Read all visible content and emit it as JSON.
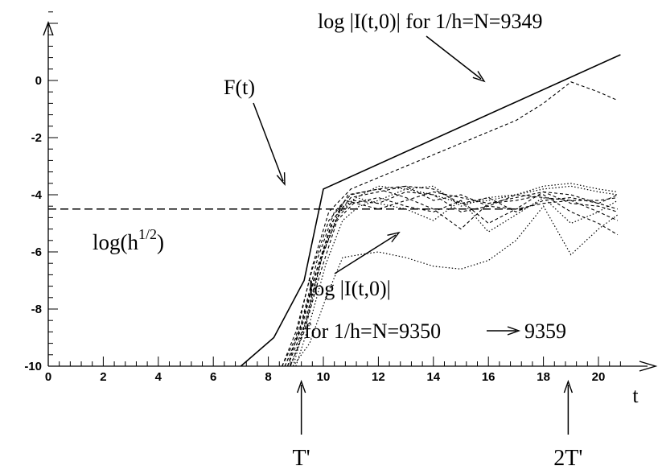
{
  "chart_data": {
    "type": "line",
    "title": "",
    "xlabel": "t",
    "ylabel": "",
    "xlim": [
      0,
      20.7
    ],
    "ylim": [
      -10,
      0
    ],
    "grid": false,
    "x_ticks": [
      "0",
      "2",
      "4",
      "6",
      "8",
      "10",
      "12",
      "14",
      "16",
      "18",
      "20"
    ],
    "y_ticks": [
      "0",
      "-2",
      "-4",
      "-6",
      "-8",
      "-10"
    ],
    "reference_line": {
      "value": -4.5,
      "label": "log(h",
      "label_sup": "1/2",
      "label_close": ")"
    },
    "x_markers": [
      {
        "x": 9.2,
        "label": "T'"
      },
      {
        "x": 18.9,
        "label": "2T'"
      }
    ],
    "annotations": {
      "F": {
        "text": "F(t)"
      },
      "top": {
        "text": "log |I(t,0)| for 1/h=N=9349"
      },
      "bottom_line1": {
        "text": "log |I(t,0)|"
      },
      "bottom_line2": {
        "text": "for 1/h=N=9350",
        "arrow_glyph": "→",
        "end_text": "9359"
      }
    },
    "series": [
      {
        "name": "F(t)",
        "style": "solid",
        "x": [
          7.0,
          8.2,
          9.3,
          10.0,
          20.8
        ],
        "y": [
          -10.0,
          -9.0,
          -7.0,
          -3.8,
          0.9
        ]
      },
      {
        "name": "N=9349",
        "style": "dashed",
        "x": [
          8.5,
          9.0,
          9.6,
          10.2,
          11.0,
          12,
          13,
          14,
          15,
          16,
          17,
          18,
          19.0,
          20.0,
          20.7
        ],
        "y": [
          -10.0,
          -9.0,
          -6.5,
          -4.6,
          -3.8,
          -3.4,
          -3.0,
          -2.6,
          -2.2,
          -1.8,
          -1.4,
          -0.8,
          -0.05,
          -0.4,
          -0.7
        ]
      },
      {
        "style": "dashed",
        "x": [
          8.5,
          9.0,
          9.6,
          10.2,
          10.8,
          12,
          13,
          14,
          15,
          16,
          17,
          18,
          19,
          20,
          20.7
        ],
        "y": [
          -10.0,
          -8.8,
          -6.6,
          -4.9,
          -4.2,
          -4.5,
          -4.2,
          -3.9,
          -4.1,
          -4.3,
          -4.1,
          -3.9,
          -4.0,
          -4.3,
          -4.0
        ]
      },
      {
        "style": "dashed",
        "x": [
          8.6,
          9.1,
          9.7,
          10.3,
          10.9,
          12,
          13,
          14,
          15,
          16,
          17,
          18,
          19,
          20,
          20.7
        ],
        "y": [
          -10.0,
          -8.9,
          -6.8,
          -5.0,
          -4.0,
          -3.8,
          -4.1,
          -4.5,
          -5.2,
          -4.3,
          -4.2,
          -4.0,
          -4.6,
          -5.0,
          -5.4
        ]
      },
      {
        "style": "dashed",
        "x": [
          8.6,
          9.2,
          9.8,
          10.4,
          11.0,
          12,
          13,
          14,
          15,
          16,
          17,
          18,
          19,
          20,
          20.7
        ],
        "y": [
          -10.0,
          -8.7,
          -6.5,
          -4.8,
          -4.1,
          -3.9,
          -3.7,
          -3.8,
          -4.3,
          -4.1,
          -4.6,
          -4.2,
          -4.1,
          -4.3,
          -4.5
        ]
      },
      {
        "style": "dashed",
        "x": [
          8.7,
          9.2,
          9.8,
          10.4,
          11.0,
          12,
          13,
          14,
          15,
          16,
          17,
          18,
          19,
          20,
          20.7
        ],
        "y": [
          -10.0,
          -8.5,
          -6.2,
          -4.6,
          -4.0,
          -3.8,
          -3.7,
          -4.2,
          -4.0,
          -4.4,
          -4.0,
          -4.1,
          -4.2,
          -4.2,
          -4.1
        ]
      },
      {
        "style": "dashed",
        "x": [
          8.7,
          9.3,
          9.9,
          10.5,
          11.1,
          12,
          13,
          14,
          15,
          16,
          17,
          18,
          19,
          20,
          20.7
        ],
        "y": [
          -10.0,
          -8.6,
          -6.3,
          -4.8,
          -4.2,
          -4.3,
          -3.9,
          -4.0,
          -4.6,
          -4.4,
          -4.5,
          -3.9,
          -4.3,
          -4.4,
          -4.6
        ]
      },
      {
        "style": "dashed",
        "x": [
          8.8,
          9.3,
          9.9,
          10.5,
          11.1,
          12,
          13,
          14,
          15,
          16,
          17,
          18,
          19,
          20,
          20.7
        ],
        "y": [
          -10.0,
          -8.8,
          -6.7,
          -4.9,
          -4.3,
          -4.1,
          -4.4,
          -4.6,
          -4.2,
          -5.0,
          -4.5,
          -4.3,
          -4.2,
          -4.6,
          -4.9
        ]
      },
      {
        "style": "dotted",
        "x": [
          8.8,
          9.4,
          10.0,
          10.6,
          11.2,
          12,
          13,
          14,
          15,
          16,
          17,
          18,
          19,
          20,
          20.7
        ],
        "y": [
          -10.0,
          -8.4,
          -6.0,
          -4.6,
          -4.1,
          -3.7,
          -3.8,
          -4.0,
          -4.3,
          -4.2,
          -4.0,
          -3.8,
          -3.7,
          -3.9,
          -4.0
        ]
      },
      {
        "style": "dotted",
        "x": [
          8.9,
          9.4,
          10.0,
          10.6,
          11.2,
          12,
          13,
          14,
          15,
          16,
          17,
          18,
          19,
          20,
          20.7
        ],
        "y": [
          -10.0,
          -8.3,
          -6.0,
          -4.5,
          -4.1,
          -4.3,
          -4.5,
          -4.9,
          -4.2,
          -5.3,
          -4.7,
          -4.1,
          -5.0,
          -4.6,
          -4.2
        ]
      },
      {
        "style": "dotted",
        "x": [
          8.9,
          9.5,
          10.1,
          10.7,
          11.3,
          12,
          13,
          14,
          15,
          16,
          17,
          18,
          19,
          20,
          20.7
        ],
        "y": [
          -10.0,
          -9.2,
          -7.6,
          -6.2,
          -6.1,
          -6.0,
          -6.2,
          -6.5,
          -6.6,
          -6.3,
          -5.6,
          -4.4,
          -6.1,
          -5.2,
          -4.7
        ]
      },
      {
        "style": "dotted",
        "x": [
          9.0,
          9.5,
          10.1,
          10.7,
          11.3,
          12,
          13,
          14,
          15,
          16,
          17,
          18,
          19,
          20,
          20.7
        ],
        "y": [
          -10.0,
          -8.5,
          -6.4,
          -4.9,
          -4.4,
          -4.2,
          -3.8,
          -3.7,
          -4.4,
          -4.1,
          -4.0,
          -3.7,
          -3.6,
          -3.8,
          -3.9
        ]
      }
    ]
  }
}
